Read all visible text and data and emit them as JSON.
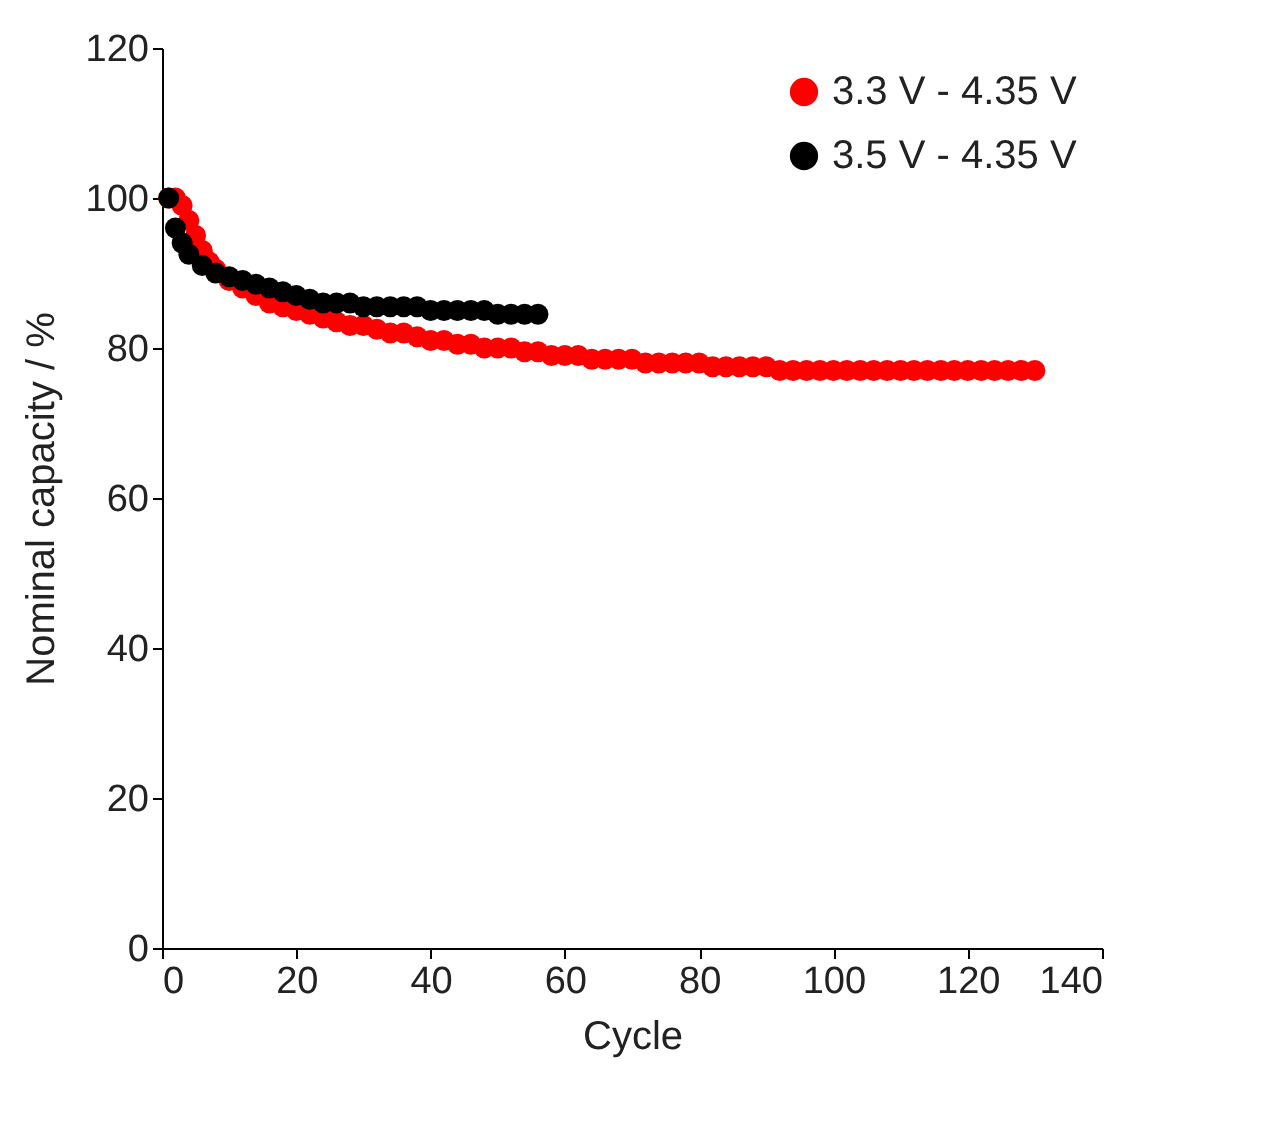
{
  "chart_data": {
    "type": "scatter",
    "xlabel": "Cycle",
    "ylabel": "Nominal capacity / %",
    "xlim": [
      0,
      140
    ],
    "xticks": [
      0,
      20,
      40,
      60,
      80,
      100,
      120,
      140
    ],
    "ylim": [
      0,
      120
    ],
    "yticks": [
      0,
      20,
      40,
      60,
      80,
      100,
      120
    ],
    "grid": false,
    "legend": "top right",
    "marker": "circle",
    "series": [
      {
        "name": "3.3 V - 4.35 V",
        "color": "#ff0000",
        "x": [
          1,
          2,
          3,
          4,
          5,
          6,
          7,
          8,
          10,
          12,
          14,
          16,
          18,
          20,
          22,
          24,
          26,
          28,
          30,
          32,
          34,
          36,
          38,
          40,
          42,
          44,
          46,
          48,
          50,
          52,
          54,
          56,
          58,
          60,
          62,
          64,
          66,
          68,
          70,
          72,
          74,
          76,
          78,
          80,
          82,
          84,
          86,
          88,
          90,
          92,
          94,
          96,
          98,
          100,
          102,
          104,
          106,
          108,
          110,
          112,
          114,
          116,
          118,
          120,
          122,
          124,
          126,
          128,
          130
        ],
        "values": [
          100,
          100,
          99,
          97,
          95,
          93,
          91.5,
          90.5,
          89,
          88,
          87,
          86,
          85.5,
          85,
          84.5,
          84,
          83.5,
          83,
          83,
          82.5,
          82,
          82,
          81.5,
          81,
          81,
          80.5,
          80.5,
          80,
          80,
          80,
          79.5,
          79.5,
          79,
          79,
          79,
          78.5,
          78.5,
          78.5,
          78.5,
          78,
          78,
          78,
          78,
          78,
          77.5,
          77.5,
          77.5,
          77.5,
          77.5,
          77,
          77,
          77,
          77,
          77,
          77,
          77,
          77,
          77,
          77,
          77,
          77,
          77,
          77,
          77,
          77,
          77,
          77,
          77,
          77
        ]
      },
      {
        "name": "3.5 V - 4.35 V",
        "color": "#000000",
        "x": [
          1,
          2,
          3,
          4,
          6,
          8,
          10,
          12,
          14,
          16,
          18,
          20,
          22,
          24,
          26,
          28,
          30,
          32,
          34,
          36,
          38,
          40,
          42,
          44,
          46,
          48,
          50,
          52,
          54,
          56
        ],
        "values": [
          100,
          96,
          94,
          92.5,
          91,
          90,
          89.5,
          89,
          88.5,
          88,
          87.5,
          87,
          86.5,
          86,
          86,
          86,
          85.5,
          85.5,
          85.5,
          85.5,
          85.5,
          85,
          85,
          85,
          85,
          85,
          84.5,
          84.5,
          84.5,
          84.5
        ]
      }
    ]
  }
}
